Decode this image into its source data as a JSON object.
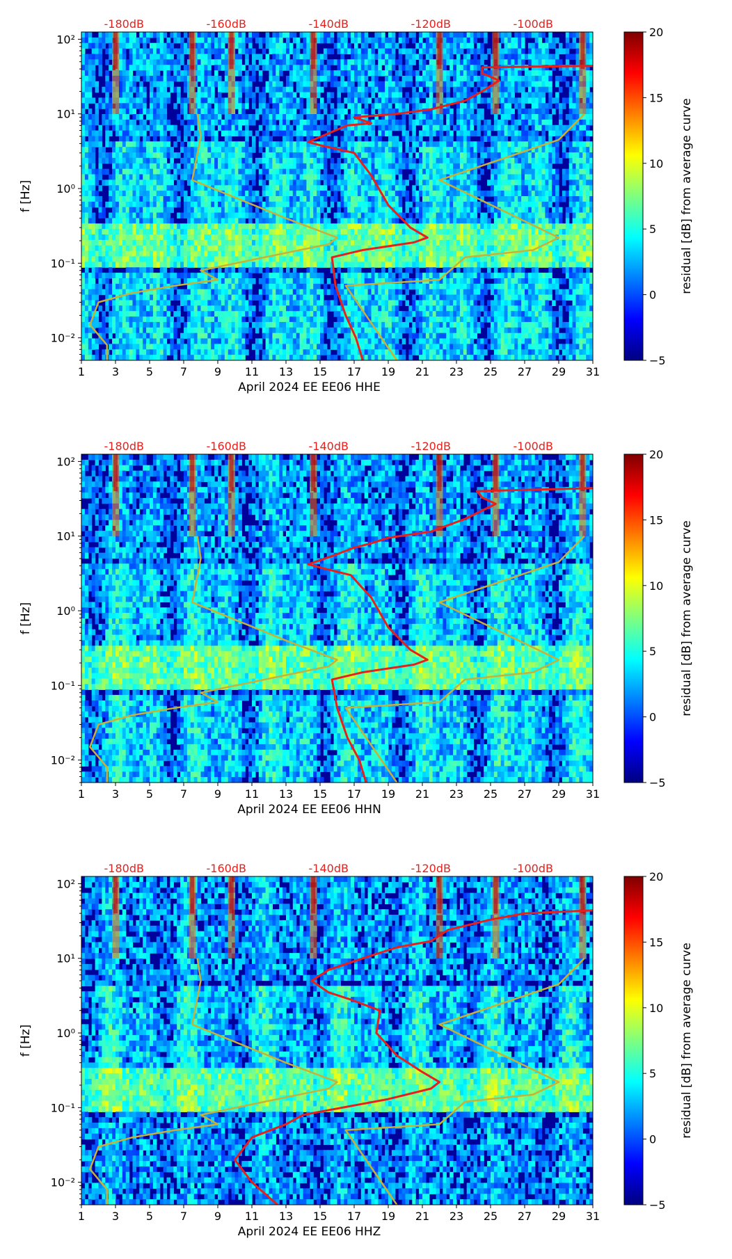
{
  "chart_data": [
    {
      "type": "heatmap",
      "station_label": "April 2024 EE EE06  HHE",
      "xlabel": "April 2024 EE EE06  HHE",
      "ylabel": "f [Hz]",
      "x_ticks": [
        "1",
        "3",
        "5",
        "7",
        "9",
        "11",
        "13",
        "15",
        "17",
        "19",
        "21",
        "23",
        "25",
        "27",
        "29",
        "31"
      ],
      "x_range": [
        1,
        31
      ],
      "y_ticks": [
        {
          "value": 0.01,
          "label": "10⁻²"
        },
        {
          "value": 0.1,
          "label": "10⁻¹"
        },
        {
          "value": 1,
          "label": "10⁰"
        },
        {
          "value": 10,
          "label": "10¹"
        },
        {
          "value": 100,
          "label": "10²"
        }
      ],
      "y_range": [
        0.005,
        125
      ],
      "db_ticks": [
        "-180dB",
        "-160dB",
        "-140dB",
        "-120dB",
        "-100dB"
      ],
      "colorbar": {
        "label": "residual [dB] from average curve",
        "ticks": [
          "20",
          "15",
          "10",
          "5",
          "0",
          "−5"
        ],
        "range": [
          -5,
          20
        ]
      },
      "series": [
        {
          "name": "median_psd",
          "color": "#e8201c",
          "points": [
            [
              17.5,
              0.005
            ],
            [
              17.1,
              0.01
            ],
            [
              16.5,
              0.02
            ],
            [
              15.9,
              0.05
            ],
            [
              15.7,
              0.12
            ],
            [
              17.5,
              0.15
            ],
            [
              20.5,
              0.19
            ],
            [
              21.3,
              0.22
            ],
            [
              20.3,
              0.3
            ],
            [
              19.0,
              0.6
            ],
            [
              18.0,
              1.5
            ],
            [
              17.0,
              3.0
            ],
            [
              15.0,
              3.8
            ],
            [
              14.3,
              4.2
            ],
            [
              15.5,
              5.5
            ],
            [
              16.6,
              7.0
            ],
            [
              18.0,
              7.5
            ],
            [
              17.0,
              9.0
            ],
            [
              19.5,
              10.0
            ],
            [
              21.5,
              11.5
            ],
            [
              23.5,
              15.0
            ],
            [
              24.5,
              20.0
            ],
            [
              25.5,
              28.0
            ],
            [
              24.5,
              35.0
            ],
            [
              24.5,
              42.0
            ],
            [
              31.0,
              44.0
            ]
          ]
        },
        {
          "name": "model_curve",
          "color": "#c9b037",
          "points": [
            [
              2.5,
              0.005
            ],
            [
              2.5,
              0.008
            ],
            [
              1.5,
              0.015
            ],
            [
              2.0,
              0.03
            ],
            [
              4.0,
              0.04
            ],
            [
              6.5,
              0.05
            ],
            [
              9.0,
              0.06
            ],
            [
              8.0,
              0.08
            ],
            [
              15.5,
              0.18
            ],
            [
              16.0,
              0.22
            ],
            [
              13.0,
              0.4
            ],
            [
              7.5,
              1.3
            ],
            [
              8.0,
              5.0
            ],
            [
              7.8,
              10.0
            ]
          ]
        },
        {
          "name": "model_curve_right",
          "color": "#c9b037",
          "points": [
            [
              19.5,
              0.005
            ],
            [
              16.5,
              0.05
            ],
            [
              22.0,
              0.06
            ],
            [
              23.5,
              0.12
            ],
            [
              27.5,
              0.15
            ],
            [
              29.0,
              0.22
            ],
            [
              22.0,
              1.3
            ],
            [
              29.0,
              4.5
            ],
            [
              30.5,
              10.0
            ]
          ]
        }
      ]
    },
    {
      "type": "heatmap",
      "station_label": "April 2024 EE EE06  HHN",
      "xlabel": "April 2024 EE EE06  HHN",
      "ylabel": "f [Hz]",
      "x_ticks": [
        "1",
        "3",
        "5",
        "7",
        "9",
        "11",
        "13",
        "15",
        "17",
        "19",
        "21",
        "23",
        "25",
        "27",
        "29",
        "31"
      ],
      "x_range": [
        1,
        31
      ],
      "y_ticks": [
        {
          "value": 0.01,
          "label": "10⁻²"
        },
        {
          "value": 0.1,
          "label": "10⁻¹"
        },
        {
          "value": 1,
          "label": "10⁰"
        },
        {
          "value": 10,
          "label": "10¹"
        },
        {
          "value": 100,
          "label": "10²"
        }
      ],
      "y_range": [
        0.005,
        125
      ],
      "db_ticks": [
        "-180dB",
        "-160dB",
        "-140dB",
        "-120dB",
        "-100dB"
      ],
      "colorbar": {
        "label": "residual [dB] from average curve",
        "ticks": [
          "20",
          "15",
          "10",
          "5",
          "0",
          "−5"
        ],
        "range": [
          -5,
          20
        ]
      },
      "series": [
        {
          "name": "median_psd",
          "color": "#e8201c",
          "points": [
            [
              17.7,
              0.005
            ],
            [
              17.3,
              0.01
            ],
            [
              16.6,
              0.02
            ],
            [
              16.0,
              0.05
            ],
            [
              15.7,
              0.12
            ],
            [
              17.5,
              0.15
            ],
            [
              20.5,
              0.19
            ],
            [
              21.3,
              0.22
            ],
            [
              20.3,
              0.3
            ],
            [
              19.0,
              0.6
            ],
            [
              18.0,
              1.5
            ],
            [
              16.8,
              3.0
            ],
            [
              15.0,
              3.8
            ],
            [
              14.3,
              4.2
            ],
            [
              15.8,
              5.5
            ],
            [
              17.0,
              7.0
            ],
            [
              18.0,
              8.0
            ],
            [
              19.0,
              9.5
            ],
            [
              21.5,
              11.5
            ],
            [
              23.5,
              17.0
            ],
            [
              24.5,
              22.0
            ],
            [
              25.3,
              27.0
            ],
            [
              24.5,
              33.0
            ],
            [
              24.2,
              40.0
            ],
            [
              31.0,
              44.0
            ]
          ]
        },
        {
          "name": "model_curve",
          "color": "#c9b037",
          "points": [
            [
              2.5,
              0.005
            ],
            [
              2.5,
              0.008
            ],
            [
              1.5,
              0.015
            ],
            [
              2.0,
              0.03
            ],
            [
              4.0,
              0.04
            ],
            [
              6.5,
              0.05
            ],
            [
              9.0,
              0.06
            ],
            [
              8.0,
              0.08
            ],
            [
              15.5,
              0.18
            ],
            [
              16.0,
              0.22
            ],
            [
              13.0,
              0.4
            ],
            [
              7.5,
              1.3
            ],
            [
              8.0,
              5.0
            ],
            [
              7.8,
              10.0
            ]
          ]
        },
        {
          "name": "model_curve_right",
          "color": "#c9b037",
          "points": [
            [
              19.5,
              0.005
            ],
            [
              16.5,
              0.05
            ],
            [
              22.0,
              0.06
            ],
            [
              23.5,
              0.12
            ],
            [
              27.5,
              0.15
            ],
            [
              29.0,
              0.22
            ],
            [
              22.0,
              1.3
            ],
            [
              29.0,
              4.5
            ],
            [
              30.5,
              10.0
            ]
          ]
        }
      ]
    },
    {
      "type": "heatmap",
      "station_label": "April 2024 EE EE06  HHZ",
      "xlabel": "April 2024 EE EE06  HHZ",
      "ylabel": "f [Hz]",
      "x_ticks": [
        "1",
        "3",
        "5",
        "7",
        "9",
        "11",
        "13",
        "15",
        "17",
        "19",
        "21",
        "23",
        "25",
        "27",
        "29",
        "31"
      ],
      "x_range": [
        1,
        31
      ],
      "y_ticks": [
        {
          "value": 0.01,
          "label": "10⁻²"
        },
        {
          "value": 0.1,
          "label": "10⁻¹"
        },
        {
          "value": 1,
          "label": "10⁰"
        },
        {
          "value": 10,
          "label": "10¹"
        },
        {
          "value": 100,
          "label": "10²"
        }
      ],
      "y_range": [
        0.005,
        125
      ],
      "db_ticks": [
        "-180dB",
        "-160dB",
        "-140dB",
        "-120dB",
        "-100dB"
      ],
      "colorbar": {
        "label": "residual [dB] from average curve",
        "ticks": [
          "20",
          "15",
          "10",
          "5",
          "0",
          "−5"
        ],
        "range": [
          -5,
          20
        ]
      },
      "series": [
        {
          "name": "median_psd",
          "color": "#e8201c",
          "points": [
            [
              12.5,
              0.005
            ],
            [
              11.0,
              0.01
            ],
            [
              10.0,
              0.02
            ],
            [
              11.0,
              0.04
            ],
            [
              13.0,
              0.06
            ],
            [
              14.0,
              0.08
            ],
            [
              19.0,
              0.13
            ],
            [
              21.5,
              0.18
            ],
            [
              22.0,
              0.22
            ],
            [
              21.0,
              0.3
            ],
            [
              19.5,
              0.5
            ],
            [
              18.3,
              1.0
            ],
            [
              18.5,
              2.0
            ],
            [
              16.8,
              2.8
            ],
            [
              15.5,
              3.5
            ],
            [
              14.5,
              5.0
            ],
            [
              15.5,
              7.0
            ],
            [
              17.5,
              10.0
            ],
            [
              19.5,
              14.0
            ],
            [
              21.5,
              17.0
            ],
            [
              22.5,
              24.0
            ],
            [
              25.0,
              33.0
            ],
            [
              27.0,
              40.0
            ],
            [
              31.0,
              44.0
            ]
          ]
        },
        {
          "name": "model_curve",
          "color": "#c9b037",
          "points": [
            [
              2.5,
              0.005
            ],
            [
              2.5,
              0.008
            ],
            [
              1.5,
              0.015
            ],
            [
              2.0,
              0.03
            ],
            [
              4.0,
              0.04
            ],
            [
              6.5,
              0.05
            ],
            [
              9.0,
              0.06
            ],
            [
              8.0,
              0.08
            ],
            [
              15.5,
              0.18
            ],
            [
              16.0,
              0.22
            ],
            [
              13.0,
              0.4
            ],
            [
              7.5,
              1.3
            ],
            [
              8.0,
              5.0
            ],
            [
              7.8,
              10.0
            ]
          ]
        },
        {
          "name": "model_curve_right",
          "color": "#c9b037",
          "points": [
            [
              19.5,
              0.005
            ],
            [
              16.5,
              0.05
            ],
            [
              22.0,
              0.06
            ],
            [
              23.5,
              0.12
            ],
            [
              27.5,
              0.15
            ],
            [
              29.0,
              0.22
            ],
            [
              22.0,
              1.3
            ],
            [
              29.0,
              4.5
            ],
            [
              30.5,
              10.0
            ]
          ]
        }
      ]
    }
  ],
  "colors": {
    "db_label": "#e8201c",
    "axis": "#000000",
    "jet_stops": [
      "#00007f",
      "#0000ff",
      "#007fff",
      "#00ffff",
      "#7fff7f",
      "#ffff00",
      "#ff7f00",
      "#ff0000",
      "#7f0000"
    ]
  }
}
